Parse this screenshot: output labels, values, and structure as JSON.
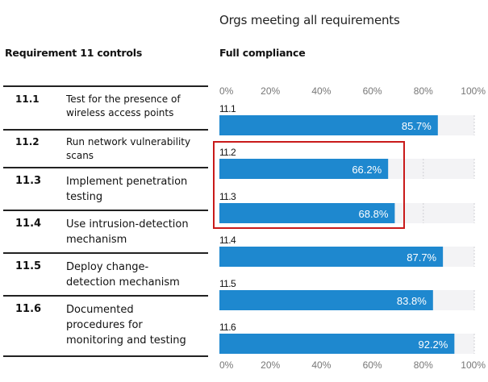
{
  "header": {
    "chart_title": "Orgs meeting all requirements",
    "left_column_title": "Requirement 11 controls",
    "right_column_title": "Full compliance"
  },
  "controls": [
    {
      "id": "11.1",
      "description": "Test for the presence of wireless access points"
    },
    {
      "id": "11.2",
      "description": "Run network vulnerability scans"
    },
    {
      "id": "11.3",
      "description": "Implement penetration testing"
    },
    {
      "id": "11.4",
      "description": "Use intrusion-detection mechanism"
    },
    {
      "id": "11.5",
      "description": "Deploy change-detection mechanism"
    },
    {
      "id": "11.6",
      "description": "Documented procedures for monitoring and testing"
    }
  ],
  "colors": {
    "bar": "#1e88cf",
    "track": "#f3f3f5",
    "gridline": "#cfcfd4",
    "highlight": "#c91a1a",
    "axis_text": "#777777",
    "bar_label": "#ffffff"
  },
  "highlight": {
    "categories": [
      "11.2",
      "11.3"
    ]
  },
  "chart_data": {
    "type": "bar",
    "orientation": "horizontal",
    "title": "Orgs meeting all requirements",
    "subtitle": "Full compliance",
    "categories": [
      "11.1",
      "11.2",
      "11.3",
      "11.4",
      "11.5",
      "11.6"
    ],
    "values": [
      85.7,
      66.2,
      68.8,
      87.7,
      83.8,
      92.2
    ],
    "value_labels": [
      "85.7%",
      "66.2%",
      "68.8%",
      "87.7%",
      "83.8%",
      "92.2%"
    ],
    "xlabel": "",
    "ylabel": "",
    "xlim": [
      0,
      100
    ],
    "x_ticks": [
      0,
      20,
      40,
      60,
      80,
      100
    ],
    "x_tick_labels": [
      "0%",
      "20%",
      "40%",
      "60%",
      "80%",
      "100%"
    ],
    "axis_labels_position": "top-and-bottom",
    "grid": true,
    "legend": "none"
  }
}
